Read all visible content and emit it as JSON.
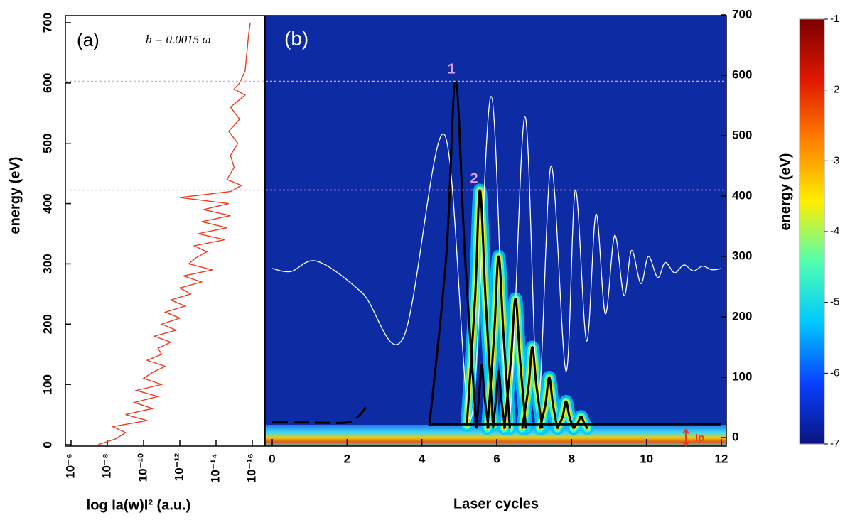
{
  "chart_data": [
    {
      "type": "line",
      "panel": "(a)",
      "annotation": "b = 0.0015 ω",
      "ylabel": "energy (eV)",
      "xlabel": "log  Ia(w)I² (a.u.)",
      "xscale": "log",
      "xlim": [
        1e-06,
        1e-16
      ],
      "xticks": [
        {
          "value": 1e-06,
          "label": "10⁻⁶"
        },
        {
          "value": 1e-08,
          "label": "10⁻⁸"
        },
        {
          "value": 1e-10,
          "label": "10⁻¹⁰"
        },
        {
          "value": 1e-12,
          "label": "10⁻¹²"
        },
        {
          "value": 1e-14,
          "label": "10⁻¹⁴"
        },
        {
          "value": 1e-16,
          "label": "10⁻¹⁶"
        }
      ],
      "ylim": [
        0,
        700
      ],
      "yticks": [
        0,
        100,
        200,
        300,
        400,
        500,
        600,
        700
      ],
      "series": [
        {
          "color": "#f03a1c",
          "x": [
            3.2e-08,
            3.2e-09,
            1e-09,
            5e-09,
            6.3e-11,
            1e-09,
            3.2e-11,
            3.2e-10,
            1.6e-11,
            2.5e-10,
            1e-11,
            1e-10,
            3.2e-11,
            6.3e-12,
            6.3e-11,
            1e-11,
            1.6e-11,
            3.2e-12,
            2.5e-11,
            1.6e-12,
            1e-11,
            1e-12,
            6.3e-12,
            5e-13,
            3.2e-12,
            2.5e-13,
            1e-12,
            6.3e-14,
            6.3e-13,
            1.6e-14,
            3.2e-13,
            1.3e-13,
            3.2e-14,
            1.6e-13,
            3.2e-15,
            1e-13,
            2.5e-15,
            6.3e-14,
            1.6e-15,
            5e-14,
            2e-15,
            1e-12,
            1.6e-15,
            4e-16,
            2.5e-15,
            1e-15,
            1.6e-15,
            6.3e-16,
            2e-15,
            5e-16,
            1.6e-15,
            2.5e-16,
            1e-15,
            5e-16,
            2.5e-16,
            2e-16,
            1.6e-16,
            1.3e-16
          ],
          "values": [
            0,
            10,
            20,
            30,
            40,
            50,
            60,
            70,
            80,
            90,
            100,
            110,
            120,
            130,
            140,
            150,
            160,
            170,
            180,
            190,
            200,
            210,
            220,
            230,
            240,
            250,
            260,
            270,
            280,
            290,
            300,
            310,
            320,
            330,
            340,
            350,
            360,
            370,
            380,
            390,
            400,
            410,
            420,
            430,
            440,
            460,
            480,
            500,
            520,
            540,
            560,
            580,
            590,
            600,
            620,
            650,
            680,
            700
          ]
        }
      ]
    },
    {
      "type": "timefreq",
      "panel": "(b)",
      "xlabel": "Laser cycles",
      "ylabel": "energy (eV)",
      "background_color": "#0d2ca3",
      "xlim": [
        0,
        12
      ],
      "xticks": [
        0,
        2,
        4,
        6,
        8,
        10,
        12
      ],
      "ylim": [
        0,
        700
      ],
      "yticks": [
        0,
        100,
        200,
        300,
        400,
        500,
        600,
        700
      ],
      "hlines": [
        590,
        410
      ],
      "hline_color": "#e39ef0",
      "peak_labels": [
        "1",
        "2"
      ],
      "ip_label": "Ip",
      "series": [
        {
          "color": "#ffffff",
          "x": [
            0,
            0.5,
            1.2,
            2.4,
            3.5,
            4.6,
            5.3,
            5.85,
            6.3,
            6.75,
            7.1,
            7.45,
            7.85,
            8.1,
            8.4,
            8.65,
            8.9,
            9.15,
            9.4,
            9.6,
            9.85,
            10.05,
            10.3,
            10.5,
            10.75,
            11,
            11.25,
            11.5,
            11.75,
            12
          ],
          "values": [
            280,
            275,
            292,
            240,
            165,
            502,
            30,
            565,
            20,
            532,
            60,
            450,
            110,
            410,
            160,
            370,
            205,
            335,
            235,
            310,
            255,
            300,
            265,
            290,
            273,
            286,
            276,
            284,
            278,
            280
          ]
        },
        {
          "color": "#000000",
          "dash": true,
          "x": [
            0,
            1,
            2,
            2.3,
            2.5
          ],
          "values": [
            25,
            25,
            25,
            35,
            50
          ]
        },
        {
          "color": "#000000",
          "x": [
            4.2,
            12
          ],
          "values": [
            22,
            22
          ]
        },
        {
          "color": "#000000",
          "x": [
            4.2,
            4.65,
            4.9,
            5.15,
            5.45
          ],
          "values": [
            20,
            300,
            590,
            300,
            20
          ]
        },
        {
          "color": "#000000",
          "glow": true,
          "x": [
            5.2,
            5.42,
            5.55,
            5.7,
            5.9
          ],
          "values": [
            20,
            230,
            410,
            230,
            20
          ]
        },
        {
          "color": "#000000",
          "glow": true,
          "x": [
            5.75,
            5.93,
            6.05,
            6.18,
            6.35
          ],
          "values": [
            15,
            170,
            300,
            170,
            15
          ]
        },
        {
          "color": "#000000",
          "glow": true,
          "x": [
            6.2,
            6.38,
            6.5,
            6.62,
            6.78
          ],
          "values": [
            15,
            130,
            230,
            130,
            15
          ]
        },
        {
          "color": "#000000",
          "glow": true,
          "x": [
            6.68,
            6.85,
            6.95,
            7.06,
            7.22
          ],
          "values": [
            15,
            85,
            150,
            85,
            15
          ]
        },
        {
          "color": "#000000",
          "glow": true,
          "x": [
            7.15,
            7.3,
            7.4,
            7.5,
            7.62
          ],
          "values": [
            15,
            55,
            100,
            55,
            15
          ]
        },
        {
          "color": "#000000",
          "glow": true,
          "x": [
            7.62,
            7.76,
            7.85,
            7.94,
            8.05
          ],
          "values": [
            15,
            35,
            60,
            35,
            15
          ]
        },
        {
          "color": "#000000",
          "glow": true,
          "x": [
            8.05,
            8.17,
            8.25,
            8.33,
            8.42
          ],
          "values": [
            15,
            25,
            35,
            25,
            15
          ]
        },
        {
          "color": "#000000",
          "x": [
            5.45,
            5.53,
            5.6,
            5.67,
            5.78
          ],
          "values": [
            15,
            70,
            120,
            70,
            15
          ]
        },
        {
          "color": "#000000",
          "x": [
            5.9,
            5.98,
            6.05,
            6.12,
            6.22
          ],
          "values": [
            15,
            65,
            110,
            65,
            15
          ]
        }
      ]
    },
    {
      "type": "colorbar",
      "colors": [
        "#0a1480",
        "#0a40ff",
        "#00c8ff",
        "#50ffb0",
        "#ffee00",
        "#ff8000",
        "#e01800",
        "#7a0000"
      ],
      "ylim": [
        -7,
        -1
      ],
      "yticks": [
        -1,
        -2,
        -3,
        -4,
        -5,
        -6,
        -7
      ]
    }
  ]
}
